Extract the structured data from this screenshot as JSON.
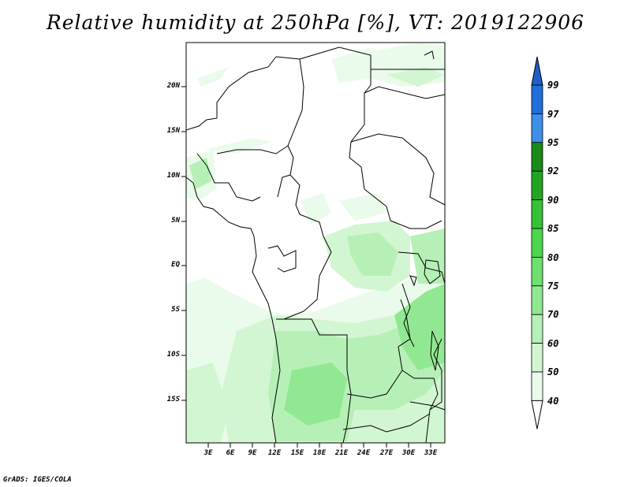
{
  "title": "Relative humidity at 250hPa [%], VT: 2019122906",
  "credit": "GrADS: IGES/COLA",
  "map": {
    "lat_labels": [
      "20N",
      "15N",
      "10N",
      "5N",
      "EQ",
      "5S",
      "10S",
      "15S"
    ],
    "lon_labels": [
      "3E",
      "6E",
      "9E",
      "12E",
      "15E",
      "18E",
      "21E",
      "24E",
      "27E",
      "30E",
      "33E"
    ]
  },
  "colorbar": {
    "labels": [
      "99",
      "97",
      "95",
      "92",
      "90",
      "85",
      "80",
      "75",
      "70",
      "60",
      "50",
      "40"
    ],
    "colors": [
      "#1e6fd9",
      "#3d8fe8",
      "#1a8a1a",
      "#23a523",
      "#35c235",
      "#4cd64c",
      "#6ee06e",
      "#92e892",
      "#b6f0b6",
      "#d2f6d2",
      "#ebfbeb"
    ],
    "top_arrow_color": "#1e5fc9",
    "bottom_arrow_color": "#ffffff"
  }
}
